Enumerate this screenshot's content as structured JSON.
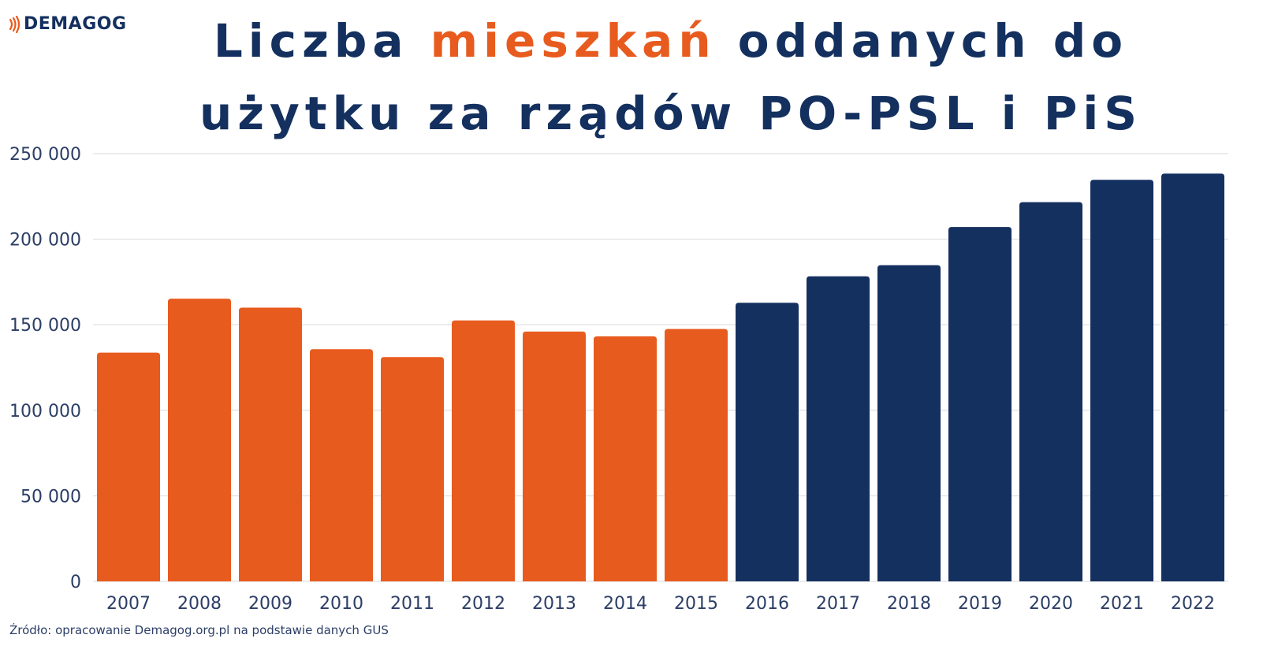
{
  "logo": {
    "text": "DEMAGOG",
    "icon": "broadcast-waves-icon"
  },
  "title": {
    "part1": "Liczba ",
    "accent": "mieszkań",
    "part2": " oddanych do",
    "line2": "użytku za rządów PO-PSL i PiS"
  },
  "source": "Źródło: opracowanie Demagog.org.pl na podstawie danych GUS",
  "colors": {
    "po_psl": "#e85b1e",
    "pis": "#14305f",
    "text": "#14305f",
    "axis_text": "#2c3e66",
    "grid": "#d9d9d9"
  },
  "chart_data": {
    "type": "bar",
    "title": "Liczba mieszkań oddanych do użytku za rządów PO-PSL i PiS",
    "xlabel": "",
    "ylabel": "",
    "ylim": [
      0,
      250000
    ],
    "yticks": [
      0,
      50000,
      100000,
      150000,
      200000,
      250000
    ],
    "ytick_labels": [
      "0",
      "50 000",
      "100 000",
      "150 000",
      "200 000",
      "250 000"
    ],
    "grid": true,
    "categories": [
      "2007",
      "2008",
      "2009",
      "2010",
      "2011",
      "2012",
      "2013",
      "2014",
      "2015",
      "2016",
      "2017",
      "2018",
      "2019",
      "2020",
      "2021",
      "2022"
    ],
    "values": [
      133700,
      165200,
      160000,
      135700,
      131100,
      152500,
      146000,
      143200,
      147500,
      162800,
      178300,
      184800,
      207100,
      221600,
      234700,
      238300
    ],
    "bar_colors": [
      "#e85b1e",
      "#e85b1e",
      "#e85b1e",
      "#e85b1e",
      "#e85b1e",
      "#e85b1e",
      "#e85b1e",
      "#e85b1e",
      "#e85b1e",
      "#14305f",
      "#14305f",
      "#14305f",
      "#14305f",
      "#14305f",
      "#14305f",
      "#14305f"
    ]
  }
}
